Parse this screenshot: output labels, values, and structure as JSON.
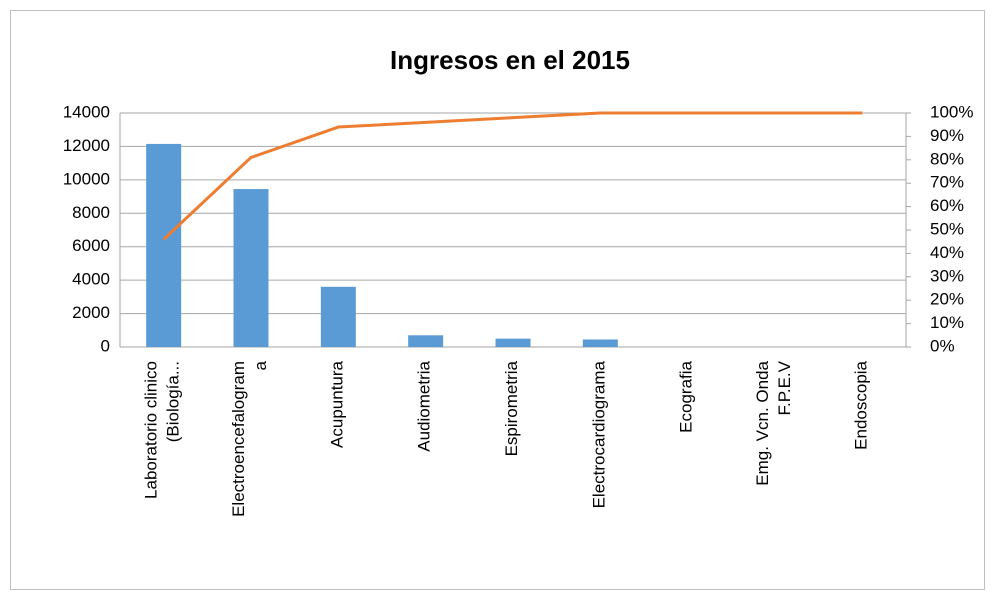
{
  "chart_data": {
    "type": "pareto",
    "title": "Ingresos en el 2015",
    "categories": [
      "Laboratorio clinico\n(Biología...",
      "Electroencefalogram\na",
      "Acupuntura",
      "Audiometria",
      "Espirometria",
      "Electrocardiograma",
      "Ecografia",
      "Emg. Vcn. Onda\nF.P.E.V",
      "Endoscopia"
    ],
    "series": [
      {
        "type": "bar",
        "color": "#5b9bd5",
        "values": [
          12150,
          9450,
          3600,
          700,
          500,
          450,
          0,
          0,
          0
        ]
      },
      {
        "type": "line",
        "axis": "y2",
        "color": "#ed7d31",
        "values": [
          46,
          81,
          94,
          96,
          98,
          100,
          100,
          100,
          100
        ]
      }
    ],
    "ylim": [
      0,
      14000
    ],
    "yticks": [
      0,
      2000,
      4000,
      6000,
      8000,
      10000,
      12000,
      14000
    ],
    "y2lim": [
      0,
      100
    ],
    "y2ticks": [
      {
        "value": 0,
        "label": "0%"
      },
      {
        "value": 10,
        "label": "10%"
      },
      {
        "value": 20,
        "label": "20%"
      },
      {
        "value": 30,
        "label": "30%"
      },
      {
        "value": 40,
        "label": "40%"
      },
      {
        "value": 50,
        "label": "50%"
      },
      {
        "value": 60,
        "label": "60%"
      },
      {
        "value": 70,
        "label": "70%"
      },
      {
        "value": 80,
        "label": "80%"
      },
      {
        "value": 90,
        "label": "90%"
      },
      {
        "value": 100,
        "label": "100%"
      }
    ],
    "grid": true
  }
}
